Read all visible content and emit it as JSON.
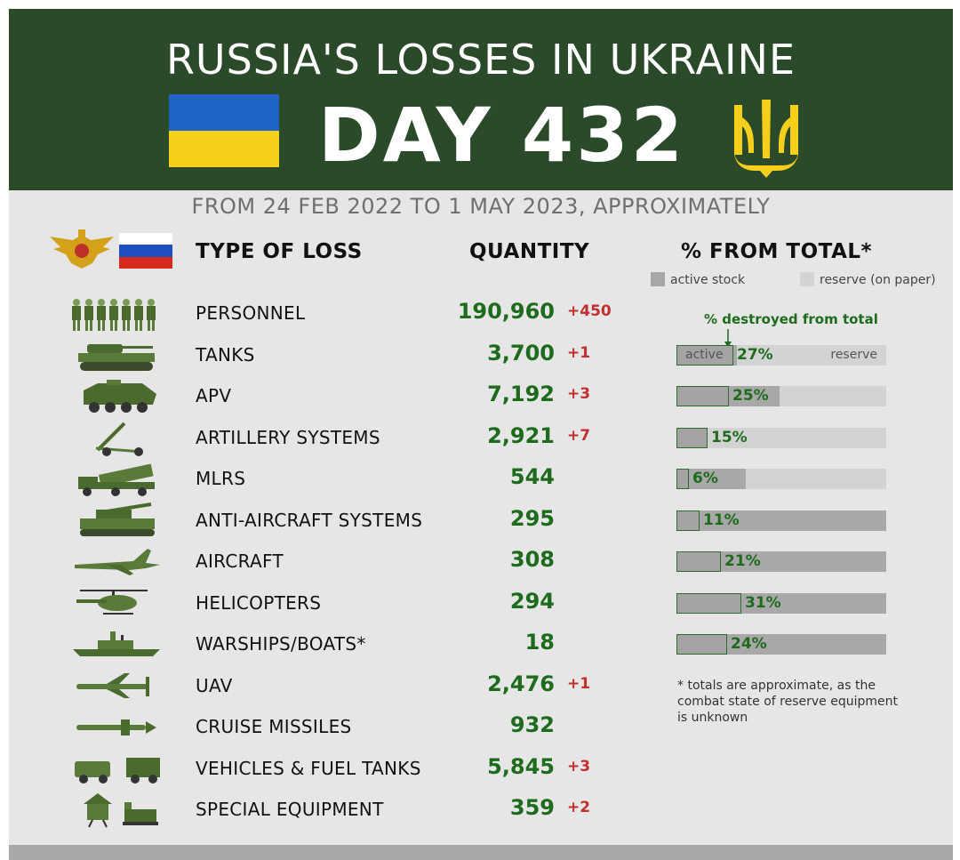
{
  "header": {
    "title": "RUSSIA'S LOSSES IN UKRAINE",
    "day": "DAY 432",
    "date_range": "FROM 24 FEB 2022 TO 1 MAY 2023, APPROXIMATELY"
  },
  "columns": {
    "type": "TYPE OF LOSS",
    "quantity": "QUANTITY",
    "percent": "% FROM TOTAL*"
  },
  "legend": {
    "active": "active stock",
    "reserve": "reserve (on paper)"
  },
  "bar_note": "% destroyed from total",
  "bar_inline": {
    "active": "active",
    "reserve": "reserve"
  },
  "footnote": "* totals are approximate, as the combat state of reserve equipment is unknown",
  "colors": {
    "header_green": "#2b4a2a",
    "quantity_green": "#1e6b1e",
    "delta_red": "#c03030",
    "ukraine_blue": "#1f64c4",
    "ukraine_yellow": "#f6cf1b"
  },
  "rows": [
    {
      "icon": "soldiers-icon",
      "label": "PERSONNEL",
      "qty": "190,960",
      "delta": "+450"
    },
    {
      "icon": "tank-icon",
      "label": "TANKS",
      "qty": "3,700",
      "delta": "+1",
      "pct": "27%",
      "destroyed": 0.27,
      "active": 0.29,
      "total": 1.0
    },
    {
      "icon": "apv-icon",
      "label": "APV",
      "qty": "7,192",
      "delta": "+3",
      "pct": "25%",
      "destroyed": 0.25,
      "active": 0.49,
      "total": 1.0
    },
    {
      "icon": "artillery-icon",
      "label": "ARTILLERY SYSTEMS",
      "qty": "2,921",
      "delta": "+7",
      "pct": "15%",
      "destroyed": 0.15,
      "active": 0.15,
      "total": 1.0
    },
    {
      "icon": "mlrs-icon",
      "label": "MLRS",
      "qty": "544",
      "delta": "",
      "pct": "6%",
      "destroyed": 0.06,
      "active": 0.33,
      "total": 1.0
    },
    {
      "icon": "anti-aircraft-icon",
      "label": "ANTI-AIRCRAFT SYSTEMS",
      "qty": "295",
      "delta": "",
      "pct": "11%",
      "destroyed": 0.11,
      "active": 1.0,
      "total": 1.0
    },
    {
      "icon": "aircraft-icon",
      "label": "AIRCRAFT",
      "qty": "308",
      "delta": "",
      "pct": "21%",
      "destroyed": 0.21,
      "active": 1.0,
      "total": 1.0
    },
    {
      "icon": "helicopter-icon",
      "label": "HELICOPTERS",
      "qty": "294",
      "delta": "",
      "pct": "31%",
      "destroyed": 0.31,
      "active": 1.0,
      "total": 1.0
    },
    {
      "icon": "warship-icon",
      "label": "WARSHIPS/BOATS*",
      "qty": "18",
      "delta": "",
      "pct": "24%",
      "destroyed": 0.24,
      "active": 1.0,
      "total": 1.0
    },
    {
      "icon": "uav-icon",
      "label": "UAV",
      "qty": "2,476",
      "delta": "+1"
    },
    {
      "icon": "cruise-missile-icon",
      "label": "CRUISE MISSILES",
      "qty": "932",
      "delta": ""
    },
    {
      "icon": "vehicles-icon",
      "label": "VEHICLES & FUEL TANKS",
      "qty": "5,845",
      "delta": "+3"
    },
    {
      "icon": "special-equipment-icon",
      "label": "SPECIAL EQUIPMENT",
      "qty": "359",
      "delta": "+2"
    }
  ]
}
